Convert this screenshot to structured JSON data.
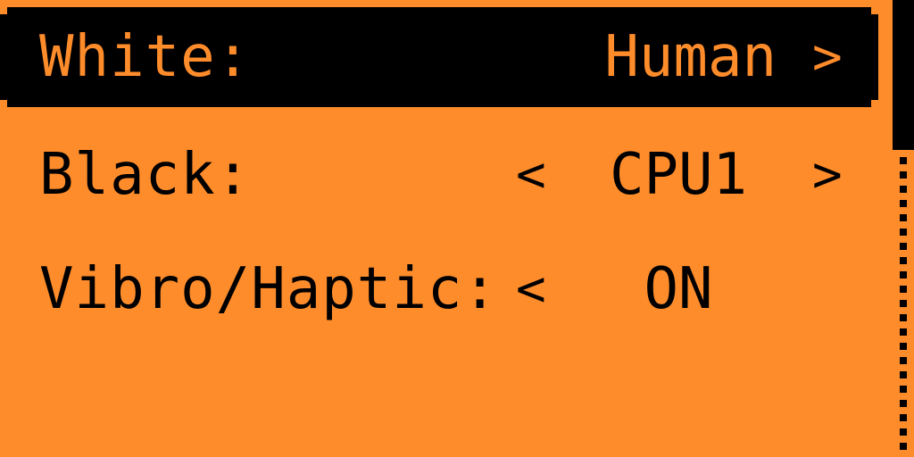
{
  "menu": {
    "items": [
      {
        "label": "White:",
        "value": "Human",
        "left_arrow": "",
        "right_arrow": ">",
        "selected": true
      },
      {
        "label": "Black:",
        "value": "CPU1",
        "left_arrow": "<",
        "right_arrow": ">",
        "selected": false
      },
      {
        "label": "Vibro/Haptic:",
        "value": "ON",
        "left_arrow": "<",
        "right_arrow": "",
        "selected": false
      }
    ]
  },
  "colors": {
    "background": "#FF8C2B",
    "foreground": "#000000"
  },
  "scrollbar": {
    "position_fraction": 0.0
  }
}
